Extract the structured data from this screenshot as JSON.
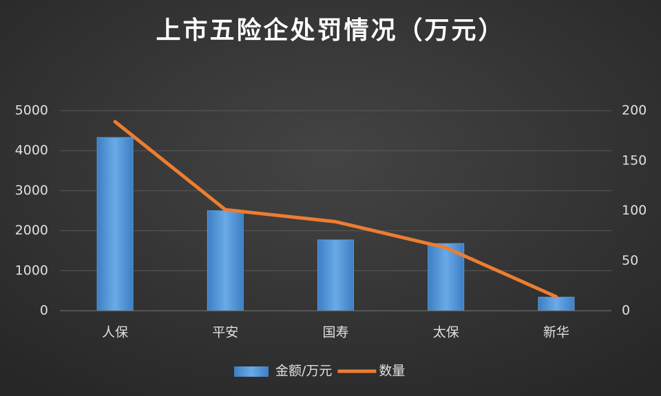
{
  "chart_data": {
    "type": "bar",
    "title": "上市五险企处罚情况（万元）",
    "categories": [
      "人保",
      "平安",
      "国寿",
      "太保",
      "新华"
    ],
    "series": [
      {
        "name": "金额/万元",
        "type": "bar",
        "color": "#5b9bd5",
        "values": [
          4330,
          2500,
          1770,
          1680,
          340
        ]
      },
      {
        "name": "数量",
        "type": "line",
        "axis": "y2",
        "color": "#ed7d31",
        "values": [
          189,
          101,
          89,
          63,
          14
        ]
      }
    ],
    "ylim": [
      0,
      5000
    ],
    "yticks": [
      0,
      1000,
      2000,
      3000,
      4000,
      5000
    ],
    "y2lim": [
      0,
      200
    ],
    "y2ticks": [
      0,
      50,
      100,
      150,
      200
    ],
    "grid": true,
    "legend": "bottom"
  }
}
